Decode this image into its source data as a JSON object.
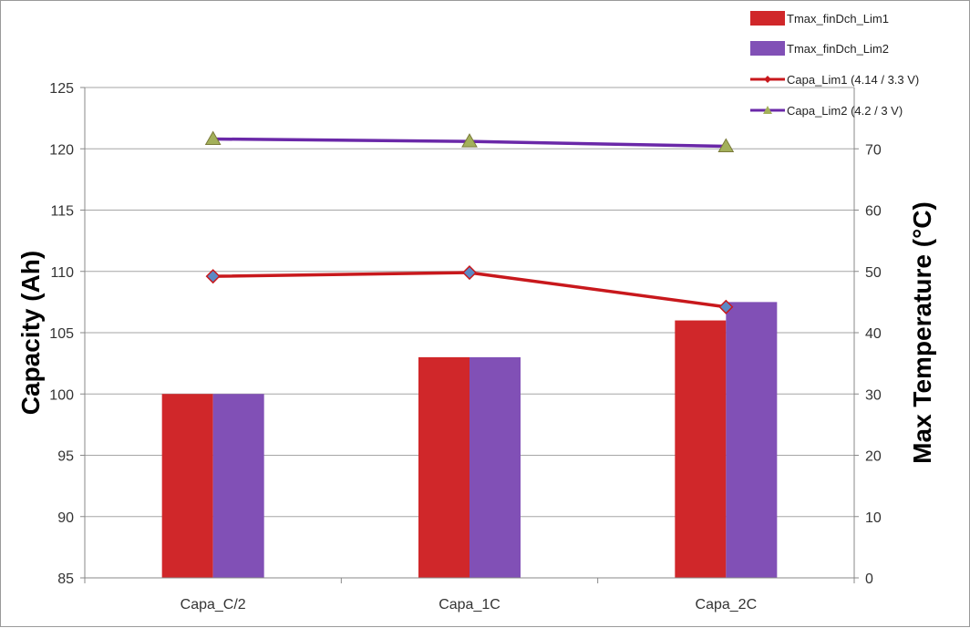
{
  "chart_data": {
    "type": "bar",
    "categories": [
      "Capa_C/2",
      "Capa_1C",
      "Capa_2C"
    ],
    "ylabel_left": "Capacity (Ah)",
    "ylabel_right": "Max Temperature (°C)",
    "ylim_left": [
      85,
      125
    ],
    "yticks_left": [
      85,
      90,
      95,
      100,
      105,
      110,
      115,
      120,
      125
    ],
    "ylim_right": [
      0,
      80
    ],
    "yticks_right": [
      0,
      10,
      20,
      30,
      40,
      50,
      60,
      70
    ],
    "grid": true,
    "legend_position": "top-right",
    "bar_series": [
      {
        "name": "Tmax_finDch_Lim1",
        "axis": "right",
        "color": "#d0272a",
        "values": [
          30,
          36,
          42
        ]
      },
      {
        "name": "Tmax_finDch_Lim2",
        "axis": "right",
        "color": "#8150b6",
        "values": [
          30,
          36,
          45
        ]
      }
    ],
    "line_series": [
      {
        "name": "Capa_Lim1 (4.14 / 3.3 V)",
        "axis": "left",
        "color": "#c8181c",
        "marker": "diamond",
        "marker_color": "#5b89c4",
        "values": [
          109.6,
          109.9,
          107.1
        ]
      },
      {
        "name": "Capa_Lim2 (4.2 / 3 V)",
        "axis": "left",
        "color": "#6a28a8",
        "marker": "triangle",
        "marker_color": "#a3b05a",
        "values": [
          120.8,
          120.6,
          120.2
        ]
      }
    ]
  }
}
